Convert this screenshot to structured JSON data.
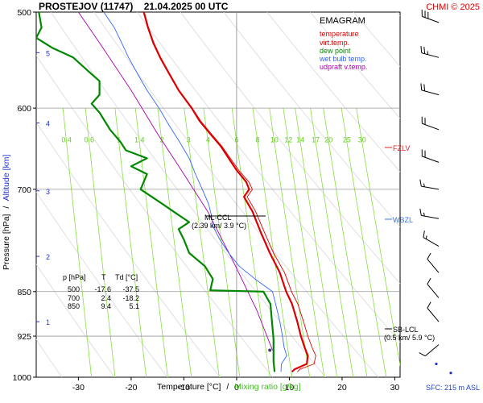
{
  "header": {
    "title": "PROSTEJOV (11747)    21.04.2025 00 UTC",
    "credit": "CHMI © 2025"
  },
  "legend": {
    "title": "EMAGRAM",
    "items": [
      {
        "label": "temperature",
        "color": "#dd0000"
      },
      {
        "label": "virt.temp.",
        "color": "#dd0000"
      },
      {
        "label": "dew point",
        "color": "#008800"
      },
      {
        "label": "wet bulb temp.",
        "color": "#3366ff"
      },
      {
        "label": "udpraft v.temp.",
        "color": "#aa00aa"
      }
    ]
  },
  "footer": {
    "sfc": "SFC: 215 m ASL"
  },
  "table": {
    "headers": [
      "p [hPa]",
      "T",
      "Td [°C]"
    ],
    "rows": [
      [
        "500",
        "-17.6",
        "-37.5"
      ],
      [
        "700",
        "2.4",
        "-18.2"
      ],
      [
        "850",
        "9.4",
        "5.1"
      ]
    ]
  },
  "annotations": {
    "fzlv": "FZLV",
    "wbzl": "WBZL",
    "ml_ccl": {
      "label": "ML-CCL",
      "detail": "(2.39 km/ 3.9 °C)"
    },
    "sb_lcl": {
      "label": "SB-LCL",
      "detail": "(0.5 km/ 5.9 °C)"
    }
  },
  "chart_data": {
    "type": "line",
    "xlabel_parts": [
      "Temperature [°C]",
      "/",
      "Mixing ratio [g/kg]"
    ],
    "ylabel_parts": [
      "Pressure [hPa]",
      "/",
      "Altitude [km]"
    ],
    "x_range": [
      -38,
      31
    ],
    "y_range": [
      500,
      1000
    ],
    "y_scale": "log",
    "x_ticks": [
      -30,
      -20,
      -10,
      0,
      10,
      20,
      30
    ],
    "p_ticks": [
      500,
      600,
      700,
      850,
      925,
      1000
    ],
    "altitude_ticks": [
      {
        "km": "1",
        "p": 900
      },
      {
        "km": "2",
        "p": 795
      },
      {
        "km": "3",
        "p": 702
      },
      {
        "km": "4",
        "p": 617
      },
      {
        "km": "5",
        "p": 540
      }
    ],
    "mixing_ratio_labels": [
      "0.4",
      "0.6",
      "1",
      "1.4",
      "2",
      "3",
      "4",
      "6",
      "8",
      "10",
      "12",
      "14",
      "17",
      "20",
      "25",
      "30"
    ],
    "colors": {
      "temperature": "#dd0000",
      "dew_point": "#008800",
      "wet_bulb": "#3366ff",
      "updraft": "#aa00aa",
      "mixing_ratio": "#88dd44",
      "annot_red": "#dd2222",
      "annot_blue": "#3377dd"
    },
    "series": [
      {
        "name": "temperature",
        "points": [
          [
            10.5,
            990
          ],
          [
            11,
            985
          ],
          [
            13.3,
            975
          ],
          [
            13.5,
            960
          ],
          [
            12.9,
            945
          ],
          [
            12.2,
            925
          ],
          [
            11.5,
            900
          ],
          [
            10.5,
            870
          ],
          [
            9.4,
            850
          ],
          [
            8.2,
            820
          ],
          [
            6.3,
            790
          ],
          [
            4.6,
            760
          ],
          [
            3.0,
            730
          ],
          [
            1.4,
            710
          ],
          [
            2.4,
            700
          ],
          [
            1.8,
            690
          ],
          [
            0.0,
            675
          ],
          [
            -1.5,
            660
          ],
          [
            -3.0,
            645
          ],
          [
            -5.0,
            630
          ],
          [
            -7.0,
            615
          ],
          [
            -8.5,
            600
          ],
          [
            -11,
            580
          ],
          [
            -13,
            560
          ],
          [
            -14.5,
            545
          ],
          [
            -15.8,
            530
          ],
          [
            -16.8,
            515
          ],
          [
            -17.6,
            500
          ]
        ]
      },
      {
        "name": "virt.temp.",
        "points": [
          [
            11.5,
            990
          ],
          [
            12,
            985
          ],
          [
            14.7,
            975
          ],
          [
            15,
            960
          ],
          [
            14.3,
            945
          ],
          [
            13.5,
            925
          ],
          [
            12.7,
            900
          ],
          [
            11.6,
            870
          ],
          [
            10.4,
            850
          ],
          [
            9.1,
            820
          ],
          [
            7.0,
            790
          ],
          [
            5.3,
            760
          ],
          [
            3.6,
            730
          ],
          [
            2.0,
            710
          ],
          [
            3.0,
            700
          ],
          [
            2.3,
            690
          ],
          [
            0.4,
            675
          ],
          [
            -1.2,
            660
          ],
          [
            -2.8,
            645
          ],
          [
            -4.8,
            630
          ],
          [
            -6.8,
            615
          ],
          [
            -8.4,
            600
          ],
          [
            -10.9,
            580
          ],
          [
            -12.9,
            560
          ],
          [
            -14.4,
            545
          ],
          [
            -15.7,
            530
          ],
          [
            -16.7,
            515
          ],
          [
            -17.5,
            500
          ]
        ]
      },
      {
        "name": "dew point",
        "points": [
          [
            7.2,
            990
          ],
          [
            7.0,
            970
          ],
          [
            7.0,
            950
          ],
          [
            7.0,
            930
          ],
          [
            6.8,
            910
          ],
          [
            6.6,
            890
          ],
          [
            6.4,
            870
          ],
          [
            5.1,
            850
          ],
          [
            -5,
            848
          ],
          [
            -4.5,
            830
          ],
          [
            -6,
            810
          ],
          [
            -9,
            790
          ],
          [
            -10,
            770
          ],
          [
            -11,
            755
          ],
          [
            -9,
            745
          ],
          [
            -12,
            730
          ],
          [
            -14,
            720
          ],
          [
            -18.2,
            700
          ],
          [
            -17,
            680
          ],
          [
            -20,
            670
          ],
          [
            -17,
            660
          ],
          [
            -21,
            650
          ],
          [
            -22,
            640
          ],
          [
            -24,
            625
          ],
          [
            -26,
            605
          ],
          [
            -27.5,
            595
          ],
          [
            -26,
            585
          ],
          [
            -26,
            570
          ],
          [
            -28,
            560
          ],
          [
            -31,
            545
          ],
          [
            -35,
            535
          ],
          [
            -38,
            525
          ],
          [
            -37,
            515
          ],
          [
            -37.5,
            500
          ]
        ]
      },
      {
        "name": "wet bulb temp.",
        "points": [
          [
            8.4,
            990
          ],
          [
            8.5,
            975
          ],
          [
            9.5,
            960
          ],
          [
            9.0,
            945
          ],
          [
            8.7,
            925
          ],
          [
            8.2,
            900
          ],
          [
            7.4,
            870
          ],
          [
            6.8,
            850
          ],
          [
            3.5,
            830
          ],
          [
            0.5,
            810
          ],
          [
            -1.5,
            790
          ],
          [
            -3.2,
            770
          ],
          [
            -4.5,
            750
          ],
          [
            -4.8,
            735
          ],
          [
            -5.3,
            720
          ],
          [
            -6.5,
            700
          ],
          [
            -7.8,
            680
          ],
          [
            -9,
            660
          ],
          [
            -10.8,
            640
          ],
          [
            -12.8,
            620
          ],
          [
            -14.7,
            600
          ],
          [
            -17,
            580
          ],
          [
            -19,
            560
          ],
          [
            -20.5,
            545
          ],
          [
            -21.8,
            530
          ],
          [
            -23.2,
            515
          ],
          [
            -25.2,
            500
          ]
        ]
      },
      {
        "name": "udpraft v.temp.",
        "points": [
          [
            6.8,
            950
          ],
          [
            3.8,
            880
          ],
          [
            -0.8,
            800
          ],
          [
            -5.5,
            730
          ],
          [
            -10,
            680
          ],
          [
            -15,
            630
          ],
          [
            -20,
            580
          ],
          [
            -26,
            530
          ],
          [
            -30,
            500
          ]
        ]
      }
    ],
    "wind_barbs": [
      {
        "p": 510,
        "dir": 290,
        "kt": 30
      },
      {
        "p": 545,
        "dir": 285,
        "kt": 25
      },
      {
        "p": 585,
        "dir": 285,
        "kt": 20
      },
      {
        "p": 625,
        "dir": 290,
        "kt": 20
      },
      {
        "p": 665,
        "dir": 290,
        "kt": 20
      },
      {
        "p": 700,
        "dir": 280,
        "kt": 15
      },
      {
        "p": 740,
        "dir": 280,
        "kt": 15
      },
      {
        "p": 780,
        "dir": 300,
        "kt": 15
      },
      {
        "p": 820,
        "dir": 320,
        "kt": 10
      },
      {
        "p": 860,
        "dir": 320,
        "kt": 10
      },
      {
        "p": 900,
        "dir": 320,
        "kt": 10
      },
      {
        "p": 940,
        "dir": 230,
        "kt": 10
      }
    ]
  }
}
